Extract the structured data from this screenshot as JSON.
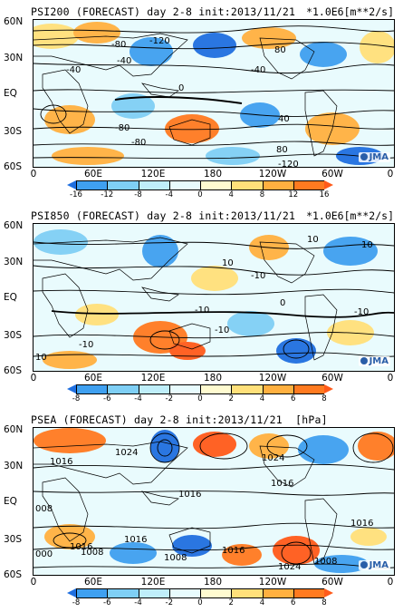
{
  "colorbar_colors": [
    "#1f6fe0",
    "#3fa0f0",
    "#7fcff5",
    "#bfeefa",
    "#e8fbfd",
    "#fffbd0",
    "#ffe07a",
    "#ffb040",
    "#ff7a20",
    "#ff5a1a"
  ],
  "latitude_labels": [
    "60N",
    "30N",
    "EQ",
    "30S",
    "60S"
  ],
  "longitude_labels": [
    "0",
    "60E",
    "120E",
    "180",
    "120W",
    "60W",
    "0"
  ],
  "logo": "JMA",
  "panels": [
    {
      "title": "PSI200 (FORECAST) day 2-8 init:2013/11/21",
      "units": "*1.0E6[m**2/s]",
      "colorbar_ticks": [
        "-16",
        "-12",
        "-8",
        "-4",
        "0",
        "4",
        "8",
        "12",
        "16"
      ],
      "contour_labels": [
        "-120",
        "-80",
        "-40",
        "0",
        "-40",
        "80",
        "40",
        "-40",
        "-80",
        "80",
        "-120",
        "-80"
      ]
    },
    {
      "title": "PSI850 (FORECAST) day 2-8 init:2013/11/21",
      "units": "*1.0E6[m**2/s]",
      "colorbar_ticks": [
        "-8",
        "-6",
        "-4",
        "-2",
        "0",
        "2",
        "4",
        "6",
        "8"
      ],
      "contour_labels": [
        "10",
        "10",
        "-10",
        "10",
        "-10",
        "-10",
        "-10",
        "0",
        "10",
        "-10"
      ]
    },
    {
      "title": "PSEA (FORECAST) day 2-8 init:2013/11/21",
      "units": "[hPa]",
      "colorbar_ticks": [
        "-8",
        "-6",
        "-4",
        "-2",
        "0",
        "2",
        "4",
        "6",
        "8"
      ],
      "contour_labels": [
        "1016",
        "1024",
        "1024",
        "1016",
        "1016",
        "008",
        "1016",
        "1016",
        "1008",
        "1016",
        "1008",
        "000",
        "1008",
        "1024",
        "1016"
      ]
    }
  ]
}
